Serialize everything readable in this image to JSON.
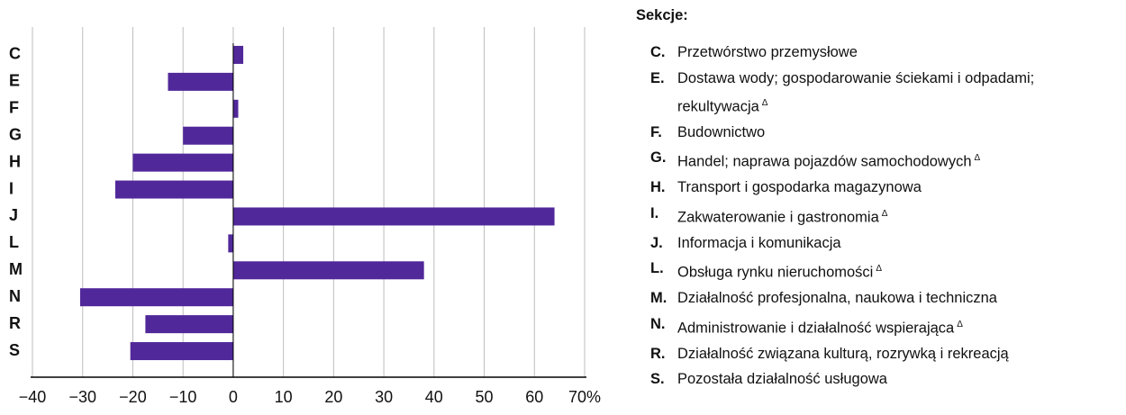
{
  "chart_data": {
    "type": "bar",
    "orientation": "horizontal",
    "categories": [
      "C",
      "E",
      "F",
      "G",
      "H",
      "I",
      "J",
      "L",
      "M",
      "N",
      "R",
      "S"
    ],
    "values": [
      2,
      -13,
      1,
      -10,
      -20,
      -23.5,
      64,
      -1,
      38,
      -30.5,
      -17.5,
      -20.5
    ],
    "color": "#51289a",
    "xlim": [
      -40,
      70
    ],
    "xticks": [
      {
        "value": -40,
        "label": "−40"
      },
      {
        "value": -30,
        "label": "−30"
      },
      {
        "value": -20,
        "label": "−20"
      },
      {
        "value": -10,
        "label": "−10"
      },
      0,
      10,
      20,
      30,
      40,
      50,
      60,
      {
        "value": 70,
        "label": "70%"
      }
    ],
    "grid": true,
    "legend": {
      "title": "Sekcje:",
      "items": [
        {
          "code": "C.",
          "lines": [
            "Przetwórstwo przemysłowe"
          ]
        },
        {
          "code": "E.",
          "lines": [
            "Dostawa wody; gospodarowanie ściekami i odpadami;",
            "rekultywacja"
          ],
          "note": "Δ"
        },
        {
          "code": "F.",
          "lines": [
            "Budownictwo"
          ]
        },
        {
          "code": "G.",
          "lines": [
            "Handel; naprawa pojazdów samochodowych"
          ],
          "note": "Δ"
        },
        {
          "code": "H.",
          "lines": [
            "Transport i gospodarka magazynowa"
          ]
        },
        {
          "code": "I.",
          "lines": [
            "Zakwaterowanie i gastronomia"
          ],
          "note": "Δ"
        },
        {
          "code": "J.",
          "lines": [
            "Informacja i komunikacja"
          ]
        },
        {
          "code": "L.",
          "lines": [
            "Obsługa rynku nieruchomości"
          ],
          "note": "Δ"
        },
        {
          "code": "M.",
          "lines": [
            "Działalność profesjonalna, naukowa i techniczna"
          ]
        },
        {
          "code": "N.",
          "lines": [
            "Administrowanie i działalność wspierająca"
          ],
          "note": "Δ"
        },
        {
          "code": "R.",
          "lines": [
            "Działalność związana kulturą, rozrywką i rekreacją"
          ]
        },
        {
          "code": "S.",
          "lines": [
            "Pozostała działalność usługowa"
          ]
        }
      ]
    }
  }
}
